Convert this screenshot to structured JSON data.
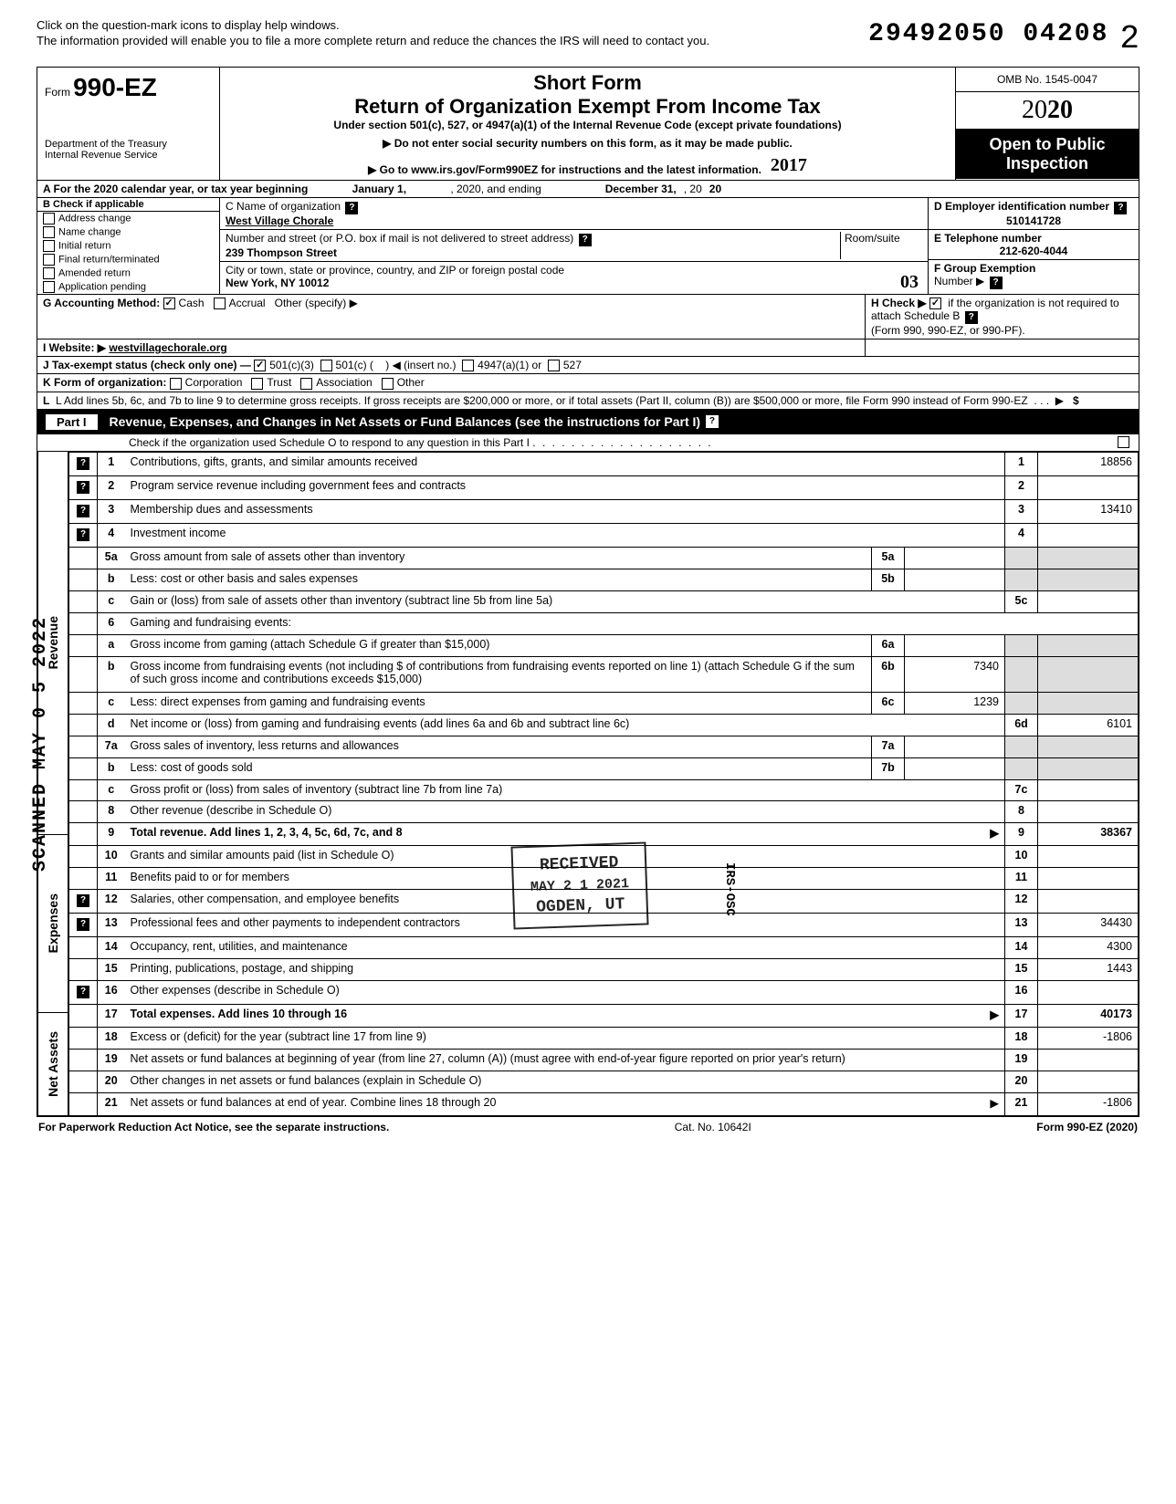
{
  "top": {
    "instr1": "Click on the question-mark icons to display help windows.",
    "instr2": "The information provided will enable you to file a more complete return and reduce the chances the IRS will need to contact you.",
    "dln": "29492050 04208",
    "page": "2"
  },
  "header": {
    "form_prefix": "Form",
    "form_no": "990-EZ",
    "dept1": "Department of the Treasury",
    "dept2": "Internal Revenue Service",
    "short_form": "Short Form",
    "title": "Return of Organization Exempt From Income Tax",
    "subtitle": "Under section 501(c), 527, or 4947(a)(1) of the Internal Revenue Code (except private foundations)",
    "instr_a": "▶ Do not enter social security numbers on this form, as it may be made public.",
    "instr_b": "▶ Go to www.irs.gov/Form990EZ for instructions and the latest information.",
    "omb": "OMB No. 1545-0047",
    "year": "2020",
    "open1": "Open to Public",
    "open2": "Inspection",
    "handnote": "2017"
  },
  "lineA": {
    "text_a": "A  For the 2020 calendar year, or tax year beginning",
    "begin_month": "January 1,",
    "mid": ", 2020, and ending",
    "end_month": "December 31,",
    "end_year_prefix": ", 20",
    "end_year": "20"
  },
  "sectionB": {
    "label": "B  Check if applicable",
    "items": [
      {
        "label": "Address change",
        "checked": false
      },
      {
        "label": "Name change",
        "checked": false
      },
      {
        "label": "Initial return",
        "checked": false
      },
      {
        "label": "Final return/terminated",
        "checked": false
      },
      {
        "label": "Amended return",
        "checked": false
      },
      {
        "label": "Application pending",
        "checked": false
      }
    ]
  },
  "sectionC": {
    "label_name": "C  Name of organization",
    "org_name": "West Village Chorale",
    "label_addr": "Number and street (or P.O. box if mail is not delivered to street address)",
    "room_label": "Room/suite",
    "street": "239 Thompson Street",
    "label_city": "City or town, state or province, country, and ZIP or foreign postal code",
    "city": "New York, NY 10012"
  },
  "sectionD": {
    "label": "D Employer identification number",
    "value": "510141728"
  },
  "sectionE": {
    "label": "E Telephone number",
    "value": "212-620-4044"
  },
  "sectionF": {
    "label": "F Group Exemption",
    "label2": "Number ▶"
  },
  "lineG": {
    "label": "G  Accounting Method:",
    "cash": "Cash",
    "accrual": "Accrual",
    "other": "Other (specify) ▶",
    "cash_checked": true
  },
  "lineH": {
    "text": "H  Check ▶",
    "text2": "if the organization is not required to attach Schedule B",
    "text3": "(Form 990, 990-EZ, or 990-PF).",
    "checked": true
  },
  "lineI": {
    "label": "I   Website: ▶",
    "value": "westvillagechorale.org"
  },
  "lineJ": {
    "label": "J  Tax-exempt status (check only one) —",
    "c501c3": "501(c)(3)",
    "c501c": "501(c) (",
    "insert": ")  ◀ (insert no.)",
    "c4947": "4947(a)(1) or",
    "c527": "527",
    "c501c3_checked": true
  },
  "lineK": {
    "label": "K  Form of organization:",
    "corp": "Corporation",
    "trust": "Trust",
    "assoc": "Association",
    "other": "Other"
  },
  "lineL": {
    "text": "L  Add lines 5b, 6c, and 7b to line 9 to determine gross receipts. If gross receipts are $200,000 or more, or if total assets (Part II, column (B)) are $500,000 or more, file Form 990 instead of Form 990-EZ",
    "arrow": "▶",
    "dollar": "$"
  },
  "part1": {
    "header": "Revenue, Expenses, and Changes in Net Assets or Fund Balances (see the instructions for Part I)",
    "part_label": "Part I",
    "checkline": "Check if the organization used Schedule O to respond to any question in this Part I"
  },
  "sections": {
    "revenue": "Revenue",
    "expenses": "Expenses",
    "netassets": "Net Assets"
  },
  "lines": [
    {
      "n": "1",
      "desc": "Contributions, gifts, grants, and similar amounts received",
      "box": "1",
      "amt": "18856",
      "help": true
    },
    {
      "n": "2",
      "desc": "Program service revenue including government fees and contracts",
      "box": "2",
      "amt": "",
      "help": true
    },
    {
      "n": "3",
      "desc": "Membership dues and assessments",
      "box": "3",
      "amt": "13410",
      "help": true
    },
    {
      "n": "4",
      "desc": "Investment income",
      "box": "4",
      "amt": "",
      "help": true
    },
    {
      "n": "5a",
      "desc": "Gross amount from sale of assets other than inventory",
      "mid": "5a",
      "midamt": ""
    },
    {
      "n": "b",
      "desc": "Less: cost or other basis and sales expenses",
      "mid": "5b",
      "midamt": ""
    },
    {
      "n": "c",
      "desc": "Gain or (loss) from sale of assets other than inventory (subtract line 5b from line 5a)",
      "box": "5c",
      "amt": ""
    },
    {
      "n": "6",
      "desc": "Gaming and fundraising events:"
    },
    {
      "n": "a",
      "desc": "Gross income from gaming (attach Schedule G if greater than $15,000)",
      "mid": "6a",
      "midamt": ""
    },
    {
      "n": "b",
      "desc": "Gross income from fundraising events (not including  $               of contributions from fundraising events reported on line 1) (attach Schedule G if the sum of such gross income and contributions exceeds $15,000)",
      "mid": "6b",
      "midamt": "7340"
    },
    {
      "n": "c",
      "desc": "Less: direct expenses from gaming and fundraising events",
      "mid": "6c",
      "midamt": "1239"
    },
    {
      "n": "d",
      "desc": "Net income or (loss) from gaming and fundraising events (add lines 6a and 6b and subtract line 6c)",
      "box": "6d",
      "amt": "6101"
    },
    {
      "n": "7a",
      "desc": "Gross sales of inventory, less returns and allowances",
      "mid": "7a",
      "midamt": ""
    },
    {
      "n": "b",
      "desc": "Less: cost of goods sold",
      "mid": "7b",
      "midamt": ""
    },
    {
      "n": "c",
      "desc": "Gross profit or (loss) from sales of inventory (subtract line 7b from line 7a)",
      "box": "7c",
      "amt": ""
    },
    {
      "n": "8",
      "desc": "Other revenue (describe in Schedule O)",
      "box": "8",
      "amt": ""
    },
    {
      "n": "9",
      "desc": "Total revenue. Add lines 1, 2, 3, 4, 5c, 6d, 7c, and 8",
      "box": "9",
      "amt": "38367",
      "bold": true,
      "arrow": true
    },
    {
      "n": "10",
      "desc": "Grants and similar amounts paid (list in Schedule O)",
      "box": "10",
      "amt": ""
    },
    {
      "n": "11",
      "desc": "Benefits paid to or for members",
      "box": "11",
      "amt": ""
    },
    {
      "n": "12",
      "desc": "Salaries, other compensation, and employee benefits",
      "box": "12",
      "amt": "",
      "help": true
    },
    {
      "n": "13",
      "desc": "Professional fees and other payments to independent contractors",
      "box": "13",
      "amt": "34430",
      "help": true
    },
    {
      "n": "14",
      "desc": "Occupancy, rent, utilities, and maintenance",
      "box": "14",
      "amt": "4300"
    },
    {
      "n": "15",
      "desc": "Printing, publications, postage, and shipping",
      "box": "15",
      "amt": "1443"
    },
    {
      "n": "16",
      "desc": "Other expenses (describe in Schedule O)",
      "box": "16",
      "amt": "",
      "help": true
    },
    {
      "n": "17",
      "desc": "Total expenses. Add lines 10 through 16",
      "box": "17",
      "amt": "40173",
      "bold": true,
      "arrow": true
    },
    {
      "n": "18",
      "desc": "Excess or (deficit) for the year (subtract line 17 from line 9)",
      "box": "18",
      "amt": "-1806"
    },
    {
      "n": "19",
      "desc": "Net assets or fund balances at beginning of year (from line 27, column (A)) (must agree with end-of-year figure reported on prior year's return)",
      "box": "19",
      "amt": ""
    },
    {
      "n": "20",
      "desc": "Other changes in net assets or fund balances (explain in Schedule O)",
      "box": "20",
      "amt": ""
    },
    {
      "n": "21",
      "desc": "Net assets or fund balances at end of year. Combine lines 18 through 20",
      "box": "21",
      "amt": "-1806",
      "arrow": true
    }
  ],
  "stamps": {
    "received_top": "RECEIVED",
    "received_date": "MAY 2 1 2021",
    "received_loc": "OGDEN, UT",
    "scanned": "SCANNED MAY 0 5 2022",
    "irs_osc": "IRS-OSC",
    "hand_03": "03"
  },
  "footer": {
    "left": "For Paperwork Reduction Act Notice, see the separate instructions.",
    "mid": "Cat. No. 10642I",
    "right": "Form 990-EZ (2020)"
  }
}
